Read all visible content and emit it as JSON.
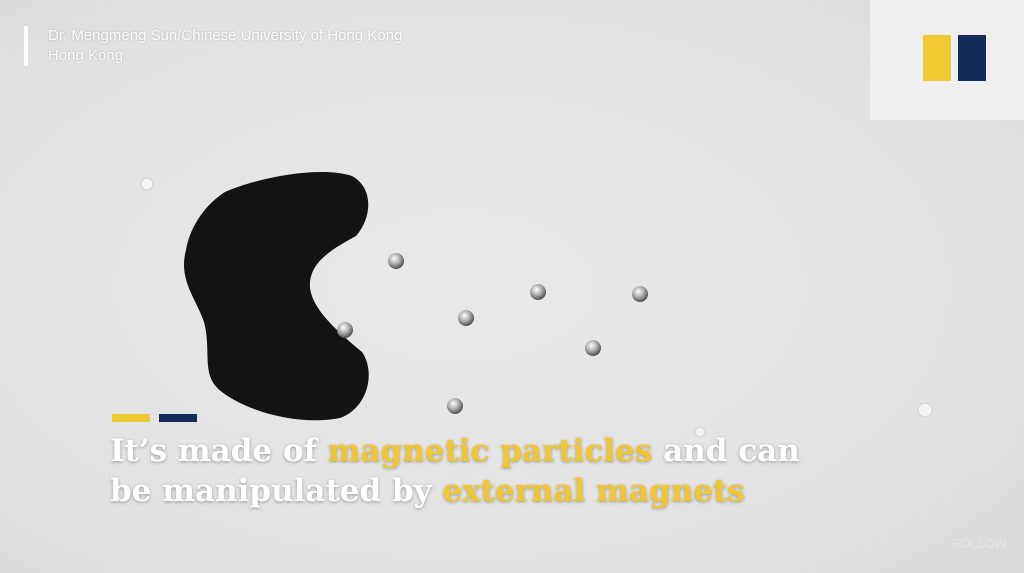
{
  "credit": {
    "line1": "Dr. Mengmeng Sun/Chinese University of Hong Kong",
    "line2": "Hong Kong"
  },
  "logo": {
    "colors": [
      "#f0c933",
      "#132a59"
    ],
    "icon": "scmp-logo-icon"
  },
  "caption": {
    "l1a": "It’s made of ",
    "l1b": "magnetic particles",
    "l1c": " and can",
    "l2a": "be manipulated by ",
    "l2b": "external magnets"
  },
  "colors": {
    "highlight": "#f2c630",
    "bar_yellow": "#f0c933",
    "bar_navy": "#132a59"
  },
  "watermark": "FOLLOW"
}
